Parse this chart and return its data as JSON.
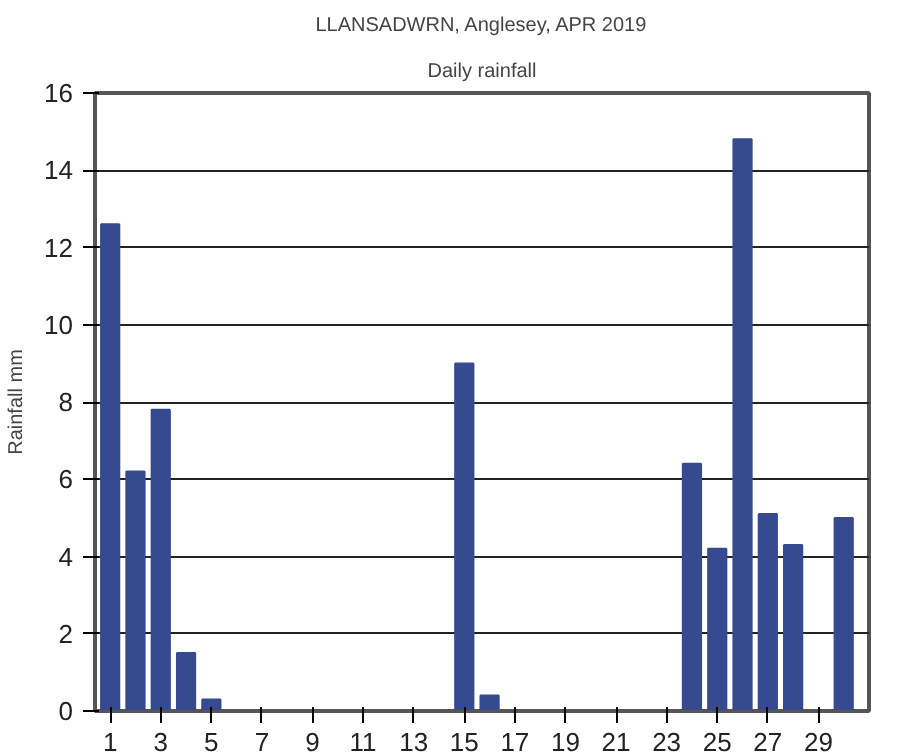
{
  "chart_data": {
    "type": "bar",
    "title": "LLANSADWRN, Anglesey, APR 2019",
    "subtitle": "Daily rainfall",
    "ylabel": "Rainfall mm",
    "x": [
      1,
      2,
      3,
      4,
      5,
      6,
      7,
      8,
      9,
      10,
      11,
      12,
      13,
      14,
      15,
      16,
      17,
      18,
      19,
      20,
      21,
      22,
      23,
      24,
      25,
      26,
      27,
      28,
      29,
      30
    ],
    "values": [
      12.6,
      6.2,
      7.8,
      1.5,
      0.3,
      0,
      0,
      0,
      0,
      0,
      0,
      0,
      0,
      0,
      9.0,
      0.4,
      0,
      0,
      0,
      0,
      0,
      0,
      0,
      6.4,
      4.2,
      14.8,
      5.1,
      4.3,
      0,
      5.0
    ],
    "color": "#354a8f",
    "xlim": [
      0.4,
      31
    ],
    "xticks": [
      1,
      3,
      5,
      7,
      9,
      11,
      13,
      15,
      17,
      19,
      21,
      23,
      25,
      27,
      29
    ],
    "ylim": [
      0,
      16
    ],
    "yticks": [
      0,
      2,
      4,
      6,
      8,
      10,
      12,
      14,
      16
    ],
    "grid": "y"
  }
}
